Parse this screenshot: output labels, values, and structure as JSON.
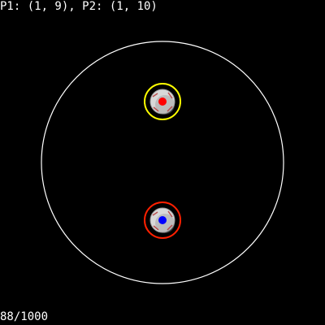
{
  "hud": {
    "positions_text": "P1: (1, 9), P2: (1, 10)",
    "step_counter_text": "88/1000"
  },
  "arena": {
    "boundary_color": "#ffffff",
    "background_color": "#000000"
  },
  "players": [
    {
      "id": "P1",
      "position": [
        1,
        9
      ],
      "marker_color": "#ff0000",
      "ring_color": "#ffff00"
    },
    {
      "id": "P2",
      "position": [
        1,
        10
      ],
      "marker_color": "#0000ff",
      "ring_color": "#ff2000"
    }
  ],
  "ball_style": {
    "base_color": "#d8d8d8",
    "shade_color": "#8a8a8a",
    "seam_color": "#b03030",
    "icon": "soccer-ball-icon"
  }
}
